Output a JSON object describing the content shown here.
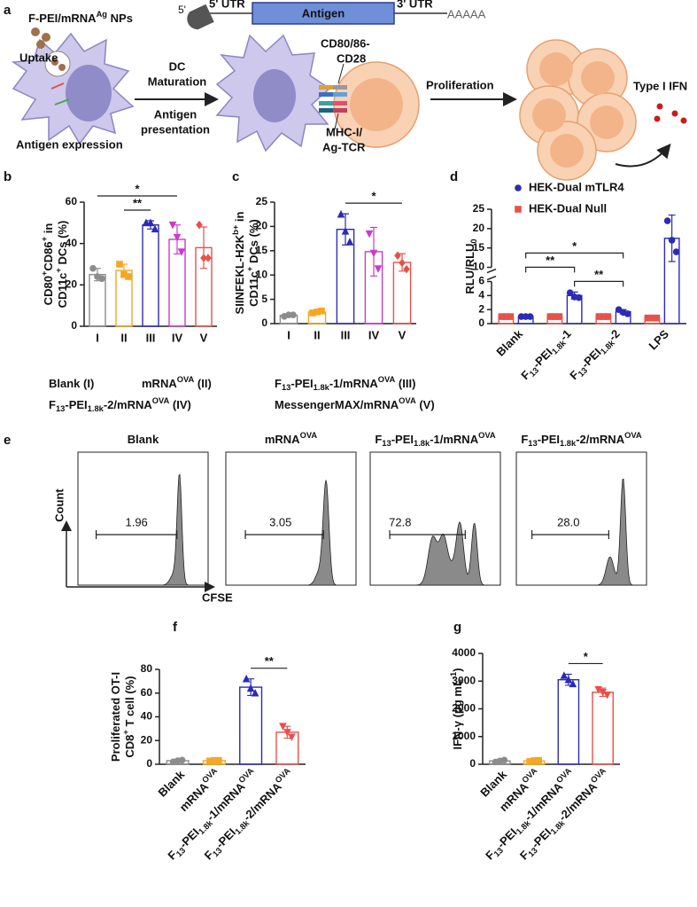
{
  "panel_labels": [
    "a",
    "b",
    "c",
    "d",
    "e",
    "f",
    "g"
  ],
  "schematic": {
    "cap": "5'",
    "utr5": "5' UTR",
    "antigen": "Antigen",
    "utr3": "3' UTR",
    "polyA": "AAAAA",
    "nanoparticle": [
      "F-PEI/mRNA",
      {
        "sup": "Ag"
      },
      " NPs"
    ],
    "uptake": "Uptake",
    "antigen_expression": "Antigen expression",
    "dc_maturation": [
      "DC",
      "Maturation"
    ],
    "antigen_presentation": [
      "Antigen",
      "presentation"
    ],
    "costim": [
      "CD80/86-",
      "CD28"
    ],
    "mhc": [
      "MHC-I/",
      "Ag-TCR"
    ],
    "proliferation": "Proliferation",
    "ifn": "Type I IFN"
  },
  "chart_data": [
    {
      "type": "bar",
      "ylabel": [
        [
          "CD80",
          {
            "sup": "+"
          },
          "CD86",
          {
            "sup": "+"
          },
          " in"
        ],
        [
          "CD11c",
          {
            "sup": "+"
          },
          " DCs (%)"
        ]
      ],
      "categories": [
        "I",
        "II",
        "III",
        "IV",
        "V"
      ],
      "values": [
        25,
        27,
        49,
        42,
        38
      ],
      "errors": [
        3,
        3,
        2,
        7,
        10
      ],
      "points": [
        [
          28,
          24,
          23
        ],
        [
          30,
          25,
          24
        ],
        [
          50,
          50,
          47
        ],
        [
          49,
          43,
          36
        ],
        [
          49,
          33,
          33
        ]
      ],
      "colors": [
        "#8c8c8c",
        "#f5a623",
        "#2b2bb5",
        "#c83cc8",
        "#e8504a"
      ],
      "markers": [
        "circle",
        "square",
        "triangle-up",
        "triangle-down",
        "diamond"
      ],
      "ylim": [
        0,
        60
      ],
      "yticks": [
        0,
        20,
        40,
        60
      ],
      "significance": [
        {
          "label": "**",
          "from": 1,
          "to": 2
        },
        {
          "label": "*",
          "from": 0,
          "to": 3
        }
      ]
    },
    {
      "type": "bar",
      "ylabel": [
        [
          "SIINFEKL-H2K",
          {
            "sup": "b+"
          },
          " in"
        ],
        [
          "CD11c",
          {
            "sup": "+"
          },
          " DCs (%)"
        ]
      ],
      "categories": [
        "I",
        "II",
        "III",
        "IV",
        "V"
      ],
      "values": [
        1.7,
        2.4,
        19.4,
        14.8,
        12.6
      ],
      "errors": [
        0.2,
        0.2,
        3.2,
        5,
        1.8
      ],
      "points": [
        [
          1.5,
          1.8,
          1.8
        ],
        [
          2.2,
          2.4,
          2.6
        ],
        [
          22.5,
          19,
          16.8
        ],
        [
          18.5,
          14.5,
          11.3
        ],
        [
          14,
          12.5,
          11.2
        ]
      ],
      "colors": [
        "#8c8c8c",
        "#f5a623",
        "#2b2bb5",
        "#c83cc8",
        "#e8504a"
      ],
      "markers": [
        "circle",
        "square",
        "triangle-up",
        "triangle-down",
        "diamond"
      ],
      "ylim": [
        0,
        25
      ],
      "yticks": [
        0,
        5,
        10,
        15,
        20,
        25
      ],
      "significance": [
        {
          "label": "*",
          "from": 2,
          "to": 4
        }
      ]
    },
    {
      "type": "bar",
      "ylabel": [
        [
          "RLU/RLU",
          {
            "sub": "0"
          }
        ]
      ],
      "categories": [
        "Blank",
        [
          "F",
          {
            "sub": "13"
          },
          "-PEI",
          {
            "sub": "1.8k"
          },
          "-1"
        ],
        [
          "F",
          {
            "sub": "13"
          },
          "-PEI",
          {
            "sub": "1.8k"
          },
          "-2"
        ],
        "LPS"
      ],
      "rotate_labels": true,
      "legend": "top",
      "series": [
        {
          "name": "HEK-Dual mTLR4",
          "color": "#2b2bb5",
          "marker": "circle",
          "values": [
            1,
            4,
            1.7,
            17.5
          ],
          "errors": [
            0.05,
            0.5,
            0.3,
            6
          ],
          "points": [
            [
              1,
              1,
              1
            ],
            [
              4.4,
              3.8,
              3.7
            ],
            [
              2,
              1.6,
              1.4
            ],
            [
              22,
              17,
              14
            ]
          ]
        },
        {
          "name": "HEK-Dual Null",
          "color": "#e8504a",
          "marker": "square",
          "values": [
            1,
            1,
            1,
            0.8
          ],
          "errors": [
            0.05,
            0.05,
            0.05,
            0.05
          ],
          "points": [
            [
              1,
              1,
              1
            ],
            [
              1,
              1,
              1
            ],
            [
              1,
              1,
              1
            ],
            [
              0.8,
              0.8,
              0.8
            ]
          ]
        }
      ],
      "ylim": [
        0,
        25
      ],
      "ybreak": [
        6,
        10
      ],
      "yticks": [
        0,
        2,
        4,
        6,
        10,
        15,
        20,
        25
      ],
      "significance": [
        {
          "label": "**",
          "from": 1,
          "to": 2,
          "series": 0
        },
        {
          "label": "**",
          "from": 0,
          "to": 1,
          "series": 0
        },
        {
          "label": "*",
          "from": 0,
          "to": 2,
          "series": 0
        }
      ]
    },
    {
      "type": "bar",
      "ylabel": [
        [
          "Proliferated OT-I"
        ],
        [
          "CD8",
          {
            "sup": "+"
          },
          " T cell (%)"
        ]
      ],
      "categories": [
        "Blank",
        [
          "mRNA",
          {
            "sup": "OVA"
          }
        ],
        [
          "F",
          {
            "sub": "13"
          },
          "-PEI",
          {
            "sub": "1.8k"
          },
          "-1/mRNA",
          {
            "sup": "OVA"
          }
        ],
        [
          "F",
          {
            "sub": "13"
          },
          "-PEI",
          {
            "sub": "1.8k"
          },
          "-2/mRNA",
          {
            "sup": "OVA"
          }
        ]
      ],
      "rotate_labels": true,
      "values": [
        3,
        3,
        65,
        27
      ],
      "errors": [
        0.7,
        0.4,
        7,
        5
      ],
      "points": [
        [
          2,
          3,
          3.5
        ],
        [
          2.8,
          3.2,
          3.2
        ],
        [
          72,
          64,
          60
        ],
        [
          32,
          27,
          23
        ]
      ],
      "colors": [
        "#8c8c8c",
        "#f5a623",
        "#2b2bb5",
        "#e8504a"
      ],
      "markers": [
        "circle",
        "square",
        "triangle-up",
        "triangle-down"
      ],
      "ylim": [
        0,
        80
      ],
      "yticks": [
        0,
        20,
        40,
        60,
        80
      ],
      "significance": [
        {
          "label": "**",
          "from": 2,
          "to": 3
        }
      ]
    },
    {
      "type": "bar",
      "ylabel": [
        [
          "IFN-γ (pg mL",
          {
            "sup": "-1"
          },
          ")"
        ]
      ],
      "categories": [
        "Blank",
        [
          "mRNA",
          {
            "sup": "OVA"
          }
        ],
        [
          "F",
          {
            "sub": "13"
          },
          "-PEI",
          {
            "sub": "1.8k"
          },
          "-1/mRNA",
          {
            "sup": "OVA"
          }
        ],
        [
          "F",
          {
            "sub": "13"
          },
          "-PEI",
          {
            "sub": "1.8k"
          },
          "-2/mRNA",
          {
            "sup": "OVA"
          }
        ]
      ],
      "rotate_labels": true,
      "values": [
        120,
        120,
        3050,
        2600
      ],
      "errors": [
        40,
        30,
        200,
        150
      ],
      "points": [
        [
          80,
          120,
          150
        ],
        [
          100,
          130,
          140
        ],
        [
          3200,
          3050,
          2900
        ],
        [
          2700,
          2600,
          2500
        ]
      ],
      "colors": [
        "#8c8c8c",
        "#f5a623",
        "#2b2bb5",
        "#e8504a"
      ],
      "markers": [
        "circle",
        "square",
        "triangle-up",
        "triangle-down"
      ],
      "ylim": [
        0,
        4000
      ],
      "yticks": [
        0,
        1000,
        2000,
        3000,
        4000
      ],
      "significance": [
        {
          "label": "*",
          "from": 2,
          "to": 3
        }
      ]
    }
  ],
  "group_legend": [
    [
      "Blank (I)"
    ],
    [
      "mRNA",
      {
        "sup": "OVA"
      },
      " (II)"
    ],
    [
      "F",
      {
        "sub": "13"
      },
      "-PEI",
      {
        "sub": "1.8k"
      },
      "-1/mRNA",
      {
        "sup": "OVA"
      },
      " (III)"
    ],
    [
      "F",
      {
        "sub": "13"
      },
      "-PEI",
      {
        "sub": "1.8k"
      },
      "-2/mRNA",
      {
        "sup": "OVA"
      },
      " (IV)"
    ],
    [
      "MessengerMAX/mRNA",
      {
        "sup": "OVA"
      },
      " (V)"
    ]
  ],
  "flow": {
    "ylabel": "Count",
    "xlabel": "CFSE",
    "panels": [
      {
        "title": [
          "Blank"
        ],
        "gate": "1.96"
      },
      {
        "title": [
          "mRNA",
          {
            "sup": "OVA"
          }
        ],
        "gate": "3.05"
      },
      {
        "title": [
          "F",
          {
            "sub": "13"
          },
          "-PEI",
          {
            "sub": "1.8k"
          },
          "-1/mRNA",
          {
            "sup": "OVA"
          }
        ],
        "gate": "72.8"
      },
      {
        "title": [
          "F",
          {
            "sub": "13"
          },
          "-PEI",
          {
            "sub": "1.8k"
          },
          "-2/mRNA",
          {
            "sup": "OVA"
          }
        ],
        "gate": "28.0"
      }
    ]
  }
}
